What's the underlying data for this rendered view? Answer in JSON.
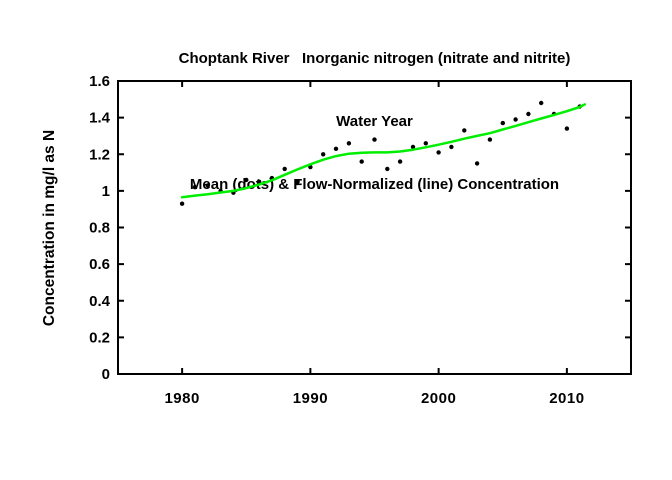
{
  "chart_data": {
    "type": "scatter",
    "title_lines": [
      "Choptank River   Inorganic nitrogen (nitrate and nitrite)",
      "Water Year",
      "Mean (dots) & Flow-Normalized (line) Concentration"
    ],
    "xlabel": "",
    "ylabel": "Concentration in mg/l as N",
    "xlim": [
      1975,
      2015
    ],
    "ylim": [
      0,
      1.6
    ],
    "x_ticks": [
      1980,
      1990,
      2000,
      2010
    ],
    "x_tick_labels": [
      "1980",
      "1990",
      "2000",
      "2010"
    ],
    "y_ticks": [
      0,
      0.2,
      0.4,
      0.6,
      0.8,
      1.0,
      1.2,
      1.4,
      1.6
    ],
    "y_tick_labels": [
      "0",
      "0.2",
      "0.4",
      "0.6",
      "0.8",
      "1",
      "1.2",
      "1.4",
      "1.6"
    ],
    "grid": false,
    "legend_position": "none",
    "colors": {
      "dots": "#000000",
      "line": "#00ee00",
      "axis": "#000000"
    },
    "series": [
      {
        "name": "Mean (dots)",
        "type": "scatter",
        "x": [
          1980,
          1981,
          1982,
          1983,
          1984,
          1985,
          1986,
          1987,
          1988,
          1989,
          1990,
          1991,
          1992,
          1993,
          1994,
          1995,
          1996,
          1997,
          1998,
          1999,
          2000,
          2001,
          2002,
          2003,
          2004,
          2005,
          2006,
          2007,
          2008,
          2009,
          2010,
          2011
        ],
        "y": [
          0.93,
          1.02,
          1.03,
          1.0,
          0.99,
          1.06,
          1.05,
          1.07,
          1.12,
          1.05,
          1.13,
          1.2,
          1.23,
          1.26,
          1.16,
          1.28,
          1.12,
          1.16,
          1.24,
          1.26,
          1.21,
          1.24,
          1.33,
          1.15,
          1.28,
          1.37,
          1.39,
          1.42,
          1.48,
          1.42,
          1.34,
          1.46
        ]
      },
      {
        "name": "Flow-Normalized (line)",
        "type": "line",
        "x": [
          1980,
          1981,
          1982,
          1983,
          1984,
          1985,
          1986,
          1987,
          1988,
          1989,
          1990,
          1991,
          1992,
          1993,
          1994,
          1995,
          1996,
          1997,
          1998,
          1999,
          2000,
          2001,
          2002,
          2003,
          2004,
          2005,
          2006,
          2007,
          2008,
          2009,
          2010,
          2011,
          2011.4
        ],
        "y": [
          0.965,
          0.974,
          0.982,
          0.991,
          1.0,
          1.015,
          1.035,
          1.058,
          1.088,
          1.117,
          1.145,
          1.17,
          1.19,
          1.203,
          1.208,
          1.21,
          1.21,
          1.215,
          1.225,
          1.238,
          1.252,
          1.268,
          1.285,
          1.3,
          1.315,
          1.335,
          1.355,
          1.375,
          1.395,
          1.415,
          1.435,
          1.458,
          1.472
        ]
      }
    ]
  }
}
